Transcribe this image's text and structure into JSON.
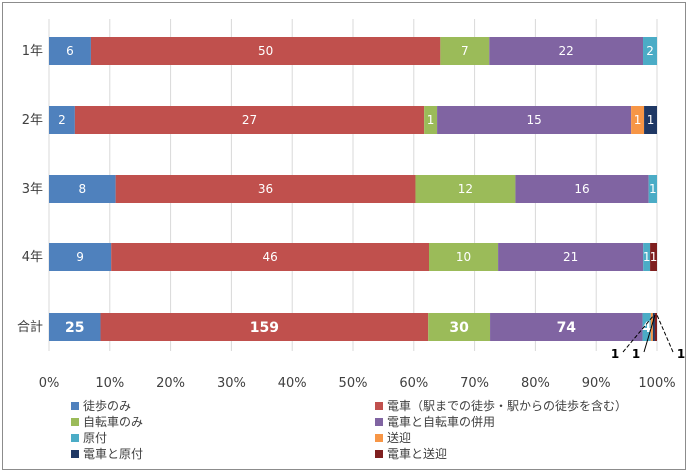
{
  "chart_data": {
    "type": "bar",
    "orientation": "horizontal",
    "stacked": "percent",
    "categories": [
      "1年",
      "2年",
      "3年",
      "4年",
      "合計"
    ],
    "series": [
      {
        "name": "徒歩のみ",
        "color": "#4f81bd",
        "values": [
          6,
          2,
          8,
          9,
          25
        ]
      },
      {
        "name": "電車（駅までの徒歩・駅からの徒歩を含む）",
        "color": "#c0504d",
        "values": [
          50,
          27,
          36,
          46,
          159
        ]
      },
      {
        "name": "自転車のみ",
        "color": "#9bbb59",
        "values": [
          7,
          1,
          12,
          10,
          30
        ]
      },
      {
        "name": "電車と自転車の併用",
        "color": "#8064a2",
        "values": [
          22,
          15,
          16,
          21,
          74
        ]
      },
      {
        "name": "原付",
        "color": "#4bacc6",
        "values": [
          2,
          0,
          1,
          1,
          4
        ]
      },
      {
        "name": "送迎",
        "color": "#f79646",
        "values": [
          0,
          1,
          0,
          0,
          1
        ]
      },
      {
        "name": "電車と原付",
        "color": "#1f3864",
        "values": [
          0,
          1,
          0,
          0,
          1
        ]
      },
      {
        "name": "電車と送迎",
        "color": "#7f1f1f",
        "values": [
          0,
          0,
          0,
          1,
          1
        ]
      }
    ],
    "xlim": [
      0,
      100
    ],
    "x_ticks": [
      "0%",
      "10%",
      "20%",
      "30%",
      "40%",
      "50%",
      "60%",
      "70%",
      "80%",
      "90%",
      "100%"
    ],
    "grid": true,
    "legend_position": "bottom",
    "callout_labels": [
      "1",
      "1",
      "1"
    ]
  }
}
